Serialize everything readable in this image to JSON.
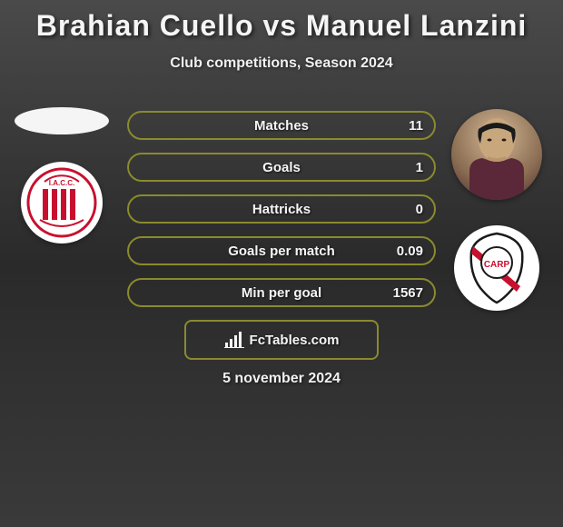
{
  "title": "Brahian Cuello vs Manuel Lanzini",
  "subtitle": "Club competitions, Season 2024",
  "accent_color": "#8a8a2e",
  "text_color": "#f5f5f5",
  "stats": [
    {
      "label": "Matches",
      "value": "11"
    },
    {
      "label": "Goals",
      "value": "1"
    },
    {
      "label": "Hattricks",
      "value": "0"
    },
    {
      "label": "Goals per match",
      "value": "0.09"
    },
    {
      "label": "Min per goal",
      "value": "1567"
    }
  ],
  "left": {
    "player_name": "Brahian Cuello",
    "club_name": "Instituto ACC",
    "club_badge": {
      "bg": "#ffffff",
      "primary": "#c8102e",
      "text": "I.A.C.C."
    }
  },
  "right": {
    "player_name": "Manuel Lanzini",
    "club_name": "River Plate",
    "club_badge": {
      "bg": "#ffffff",
      "stripe": "#c8102e",
      "text": "CARP"
    }
  },
  "footer": {
    "site": "FcTables.com",
    "date": "5 november 2024"
  }
}
